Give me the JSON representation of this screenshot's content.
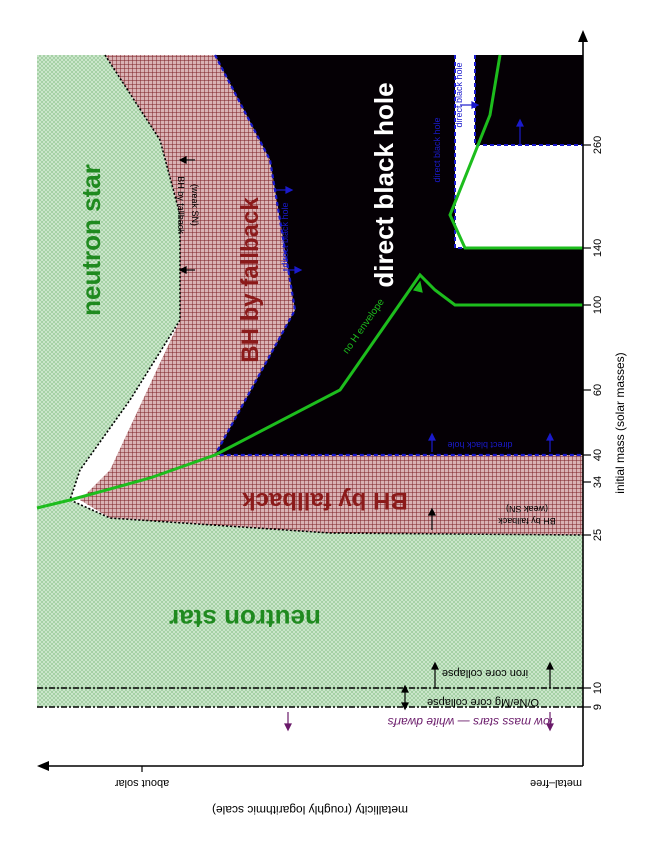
{
  "axes": {
    "x_label": "initial mass (solar masses)",
    "y_label": "metallicity (roughly logarithmic scale)",
    "x_ticks": [
      "9",
      "10",
      "25",
      "34",
      "40",
      "60",
      "100",
      "140",
      "260"
    ],
    "y_ticks": [
      "metal–free",
      "about solar"
    ]
  },
  "regions": {
    "ns_top": "neutron star",
    "ns_bottom": "neutron star",
    "bhfb_top": "BH by fallback",
    "bhfb_bottom": "BH by fallback",
    "direct": "direct black hole"
  },
  "annotations": {
    "low_mass": "low mass stars — white dwarfs",
    "onemg": "O/Ne/Mg core collapse",
    "iron": "iron core collapse",
    "weak_sn_bottom_1": "BH by fallback",
    "weak_sn_bottom_2": "(weak SN)",
    "weak_sn_top_1": "BH by fallback",
    "weak_sn_top_2": "(weak SN)",
    "direct_bh_small_1": "direct black hole",
    "direct_bh_small_2": "direct black hole",
    "direct_bh_small_3": "direct black hole",
    "direct_bh_small_4": "direct black hole",
    "no_h": "no H envelope"
  },
  "colors": {
    "neutron_star": "#bfe3bf",
    "bh_fallback": "#c4878a",
    "direct_bh": "#000000",
    "green_line": "#1dbd1d",
    "text_green": "#1f8a1f",
    "text_red": "#8b1a1a",
    "text_blue": "#1a1acc",
    "text_purple": "#6a1a6a"
  }
}
